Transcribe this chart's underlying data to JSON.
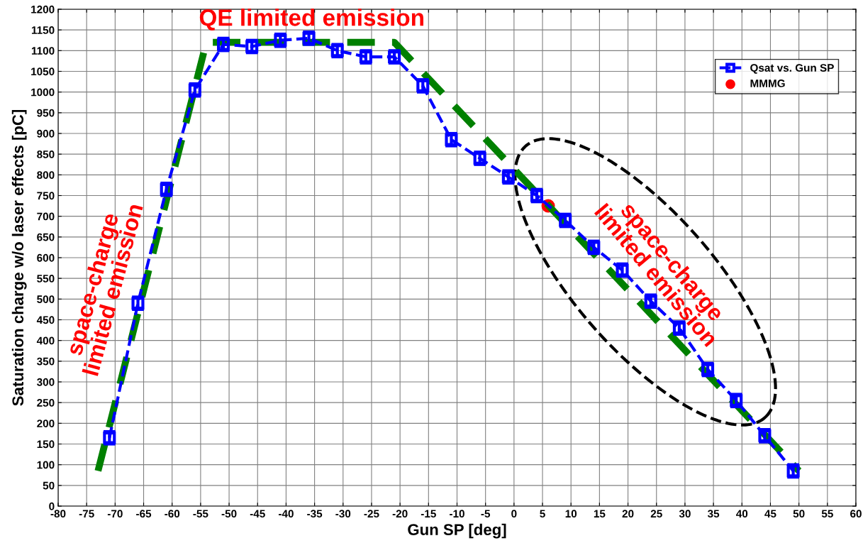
{
  "chart_data": {
    "type": "line",
    "xlabel": "Gun SP [deg]",
    "ylabel": "Saturation charge w/o laser effects [pC]",
    "xlim": [
      -80,
      60
    ],
    "xticks": [
      -80,
      -75,
      -70,
      -65,
      -60,
      -55,
      -50,
      -45,
      -40,
      -35,
      -30,
      -25,
      -20,
      -15,
      -10,
      -5,
      0,
      5,
      10,
      15,
      20,
      25,
      30,
      35,
      40,
      45,
      50,
      55,
      60
    ],
    "ylim": [
      0,
      1200
    ],
    "yticks": [
      0,
      50,
      100,
      150,
      200,
      250,
      300,
      350,
      400,
      450,
      500,
      550,
      600,
      650,
      700,
      750,
      800,
      850,
      900,
      950,
      1000,
      1050,
      1100,
      1150,
      1200
    ],
    "grid": true,
    "legend": "top right",
    "series": [
      {
        "name": "Qsat vs. Gun SP",
        "color": "#0000ff",
        "marker": "square",
        "line_style": "dashed",
        "x": [
          -71,
          -66,
          -61,
          -56,
          -51,
          -46,
          -41,
          -36,
          -31,
          -26,
          -21,
          -16,
          -11,
          -6,
          -1,
          4,
          9,
          14,
          19,
          24,
          29,
          34,
          39,
          44,
          49
        ],
        "values": [
          165,
          490,
          765,
          1005,
          1115,
          1110,
          1125,
          1130,
          1100,
          1085,
          1085,
          1015,
          885,
          840,
          795,
          750,
          690,
          625,
          570,
          495,
          430,
          330,
          255,
          170,
          85
        ],
        "errors": [
          15,
          15,
          15,
          15,
          15,
          15,
          15,
          15,
          15,
          15,
          15,
          15,
          15,
          15,
          15,
          15,
          15,
          15,
          15,
          15,
          15,
          15,
          15,
          15,
          15
        ]
      },
      {
        "name": "MMMG",
        "type": "scatter",
        "color": "#ff0000",
        "marker": "circle",
        "x": [
          6
        ],
        "values": [
          725
        ]
      },
      {
        "color": "#008000",
        "line_style": "dashed",
        "marker": "none",
        "x": [
          -73,
          -54,
          -21,
          50
        ],
        "values": [
          85,
          1120,
          1120,
          85
        ]
      }
    ],
    "annotations": [
      "QE limited emission",
      "space-charge\nlimited emission",
      "space-charge\nlimited emission"
    ]
  }
}
